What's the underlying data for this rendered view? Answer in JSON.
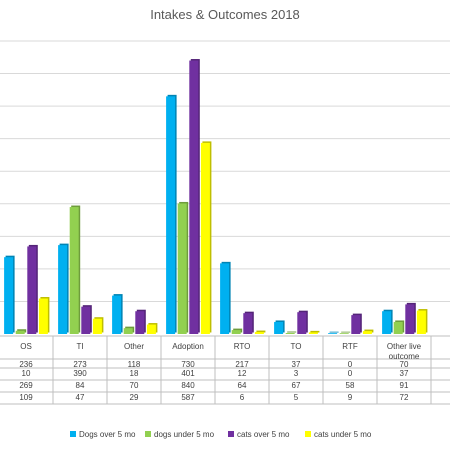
{
  "chart_data": {
    "type": "bar",
    "title": "Intakes & Outcomes 2018",
    "categories": [
      "OS",
      "TI",
      "Other",
      "Adoption",
      "RTO",
      "TO",
      "RTF",
      "Other live\noutcome"
    ],
    "series": [
      {
        "name": "Dogs over 5 mo",
        "color": "#00B0F0",
        "values": [
          236,
          273,
          118,
          730,
          217,
          37,
          0,
          70
        ]
      },
      {
        "name": "dogs under 5 mo",
        "color": "#92D050",
        "values": [
          10,
          390,
          18,
          401,
          12,
          3,
          0,
          37
        ]
      },
      {
        "name": "cats over 5 mo",
        "color": "#7030A0",
        "values": [
          269,
          84,
          70,
          840,
          64,
          67,
          58,
          91
        ]
      },
      {
        "name": "cats under 5 mo",
        "color": "#FFFF00",
        "values": [
          109,
          47,
          29,
          587,
          6,
          5,
          9,
          72
        ]
      }
    ],
    "ylim": [
      0,
      900
    ],
    "grid": true,
    "legend_position": "bottom",
    "data_table": true
  }
}
